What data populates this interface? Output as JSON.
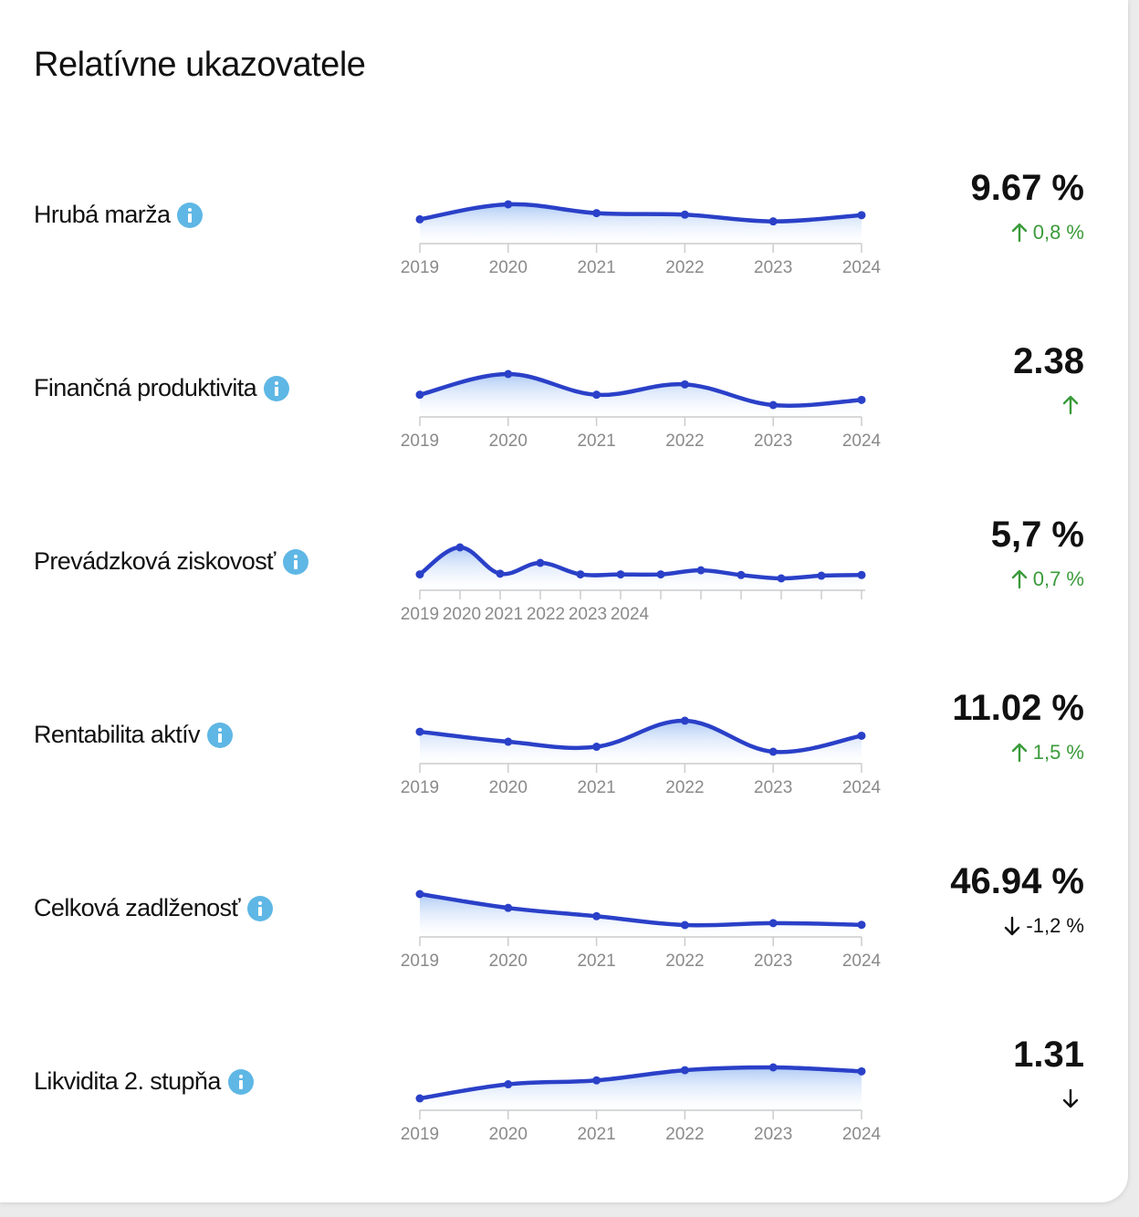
{
  "title": "Relatívne ukazovatele",
  "colors": {
    "line": "#2a40c8",
    "area_top": "#a9c7f5",
    "area_bottom": "#ffffff",
    "axis": "#cccccc",
    "positive": "#3a9b3a",
    "neutral": "#111111",
    "info": "#5fb7e5"
  },
  "rows": [
    {
      "label": "Hrubá marža",
      "value": "9.67 %",
      "change": {
        "direction": "up",
        "text": "0,8 %",
        "color": "#3a9b3a"
      },
      "chart_data": {
        "type": "area",
        "x": [
          "2019",
          "2020",
          "2021",
          "2022",
          "2023",
          "2024"
        ],
        "values": [
          8.4,
          11.3,
          9.6,
          9.3,
          8.0,
          9.2
        ],
        "ylim": [
          6.0,
          12.0
        ],
        "tick_labels": [
          "2019",
          "2020",
          "2021",
          "2022",
          "2023",
          "2024"
        ]
      }
    },
    {
      "label": "Finančná produktivita",
      "value": "2.38",
      "change": {
        "direction": "up",
        "text": "",
        "color": "#3a9b3a"
      },
      "chart_data": {
        "type": "area",
        "x": [
          "2019",
          "2020",
          "2021",
          "2022",
          "2023",
          "2024"
        ],
        "values": [
          2.3,
          3.1,
          2.3,
          2.7,
          1.9,
          2.1
        ],
        "ylim": [
          1.9,
          3.1
        ],
        "tick_labels": [
          "2019",
          "2020",
          "2021",
          "2022",
          "2023",
          "2024"
        ]
      }
    },
    {
      "label": "Prevádzková ziskovosť",
      "value": "5,7 %",
      "change": {
        "direction": "up",
        "text": "0,7 %",
        "color": "#3a9b3a"
      },
      "chart_data": {
        "type": "area",
        "x": [
          1,
          2,
          3,
          4,
          5,
          6,
          7,
          8,
          9,
          10,
          11,
          12
        ],
        "values": [
          0.5,
          4.5,
          0.6,
          2.2,
          0.5,
          0.5,
          0.5,
          1.1,
          0.4,
          -0.1,
          0.3,
          0.4
        ],
        "ylim": [
          -0.1,
          4.5
        ],
        "tick_labels": [
          "2019",
          "2020",
          "2021",
          "2022",
          "2023",
          "2024"
        ]
      }
    },
    {
      "label": "Rentabilita aktív",
      "value": "11.02 %",
      "change": {
        "direction": "up",
        "text": "1,5 %",
        "color": "#3a9b3a"
      },
      "chart_data": {
        "type": "area",
        "x": [
          "2019",
          "2020",
          "2021",
          "2022",
          "2023",
          "2024"
        ],
        "values": [
          9.5,
          8.5,
          8.0,
          10.6,
          7.5,
          9.1
        ],
        "ylim": [
          7.5,
          10.6
        ],
        "tick_labels": [
          "2019",
          "2020",
          "2021",
          "2022",
          "2023",
          "2024"
        ]
      }
    },
    {
      "label": "Celková zadlženosť",
      "value": "46.94 %",
      "change": {
        "direction": "down",
        "text": "-1,2 %",
        "color": "#111111"
      },
      "chart_data": {
        "type": "area",
        "x": [
          "2019",
          "2020",
          "2021",
          "2022",
          "2023",
          "2024"
        ],
        "values": [
          58.0,
          53.0,
          50.0,
          46.8,
          47.5,
          46.9
        ],
        "ylim": [
          46.8,
          58.0
        ],
        "tick_labels": [
          "2019",
          "2020",
          "2021",
          "2022",
          "2023",
          "2024"
        ]
      }
    },
    {
      "label": "Likvidita 2. stupňa",
      "value": "1.31",
      "change": {
        "direction": "down",
        "text": "",
        "color": "#111111"
      },
      "chart_data": {
        "type": "area",
        "x": [
          "2019",
          "2020",
          "2021",
          "2022",
          "2023",
          "2024"
        ],
        "values": [
          0.9,
          1.15,
          1.22,
          1.4,
          1.45,
          1.38
        ],
        "ylim": [
          0.9,
          1.45
        ],
        "tick_labels": [
          "2019",
          "2020",
          "2021",
          "2022",
          "2023",
          "2024"
        ]
      }
    }
  ]
}
